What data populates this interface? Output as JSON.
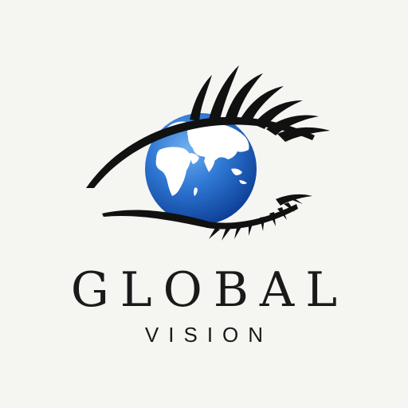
{
  "logo": {
    "name": "GLOBAL",
    "tagline": "VISION",
    "icon": "eye-globe-icon",
    "colors": {
      "background": "#f5f5f2",
      "ink": "#111111",
      "globe_light": "#4a8fe0",
      "globe_dark": "#0b3f9c",
      "land": "#ffffff"
    }
  }
}
